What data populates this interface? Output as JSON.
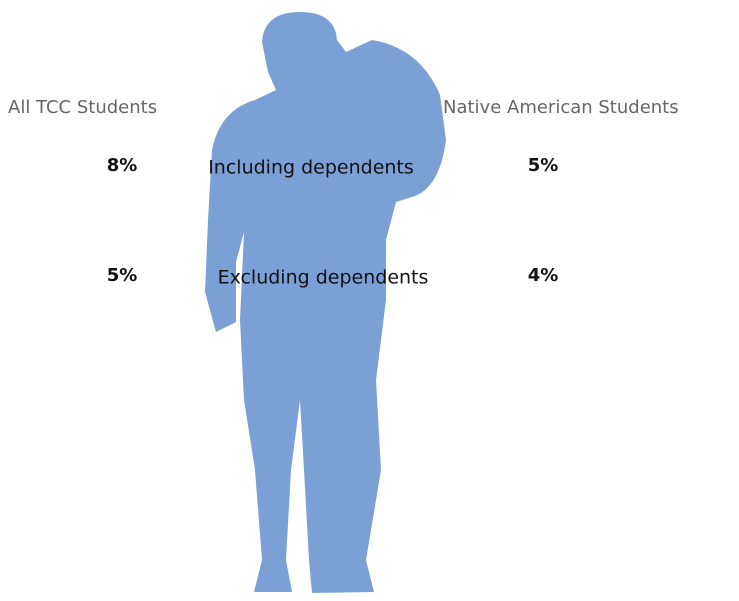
{
  "table": {
    "columns": [
      "All TCC Students",
      "Native American Students"
    ],
    "rows": [
      {
        "label": "Including dependents",
        "cells": [
          "8%",
          "5%"
        ]
      },
      {
        "label": "Excluding dependents",
        "cells": [
          "5%",
          "4%"
        ]
      }
    ]
  }
}
